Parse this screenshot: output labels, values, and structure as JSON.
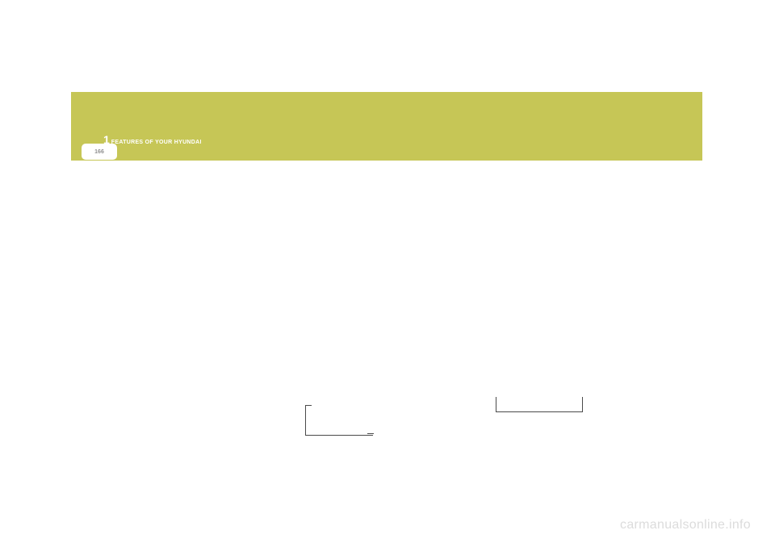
{
  "header": {
    "band_color": "#c6c656",
    "chapter_number": "1",
    "title": "FEATURES OF YOUR HYUNDAI",
    "text_color": "#ffffff"
  },
  "page_tab": {
    "number": "166",
    "bg_color": "#ffffff",
    "text_color": "#909090"
  },
  "brackets": {
    "left": {
      "color": "#4a4a4a"
    },
    "right": {
      "color": "#4a4a4a"
    }
  },
  "watermark": {
    "text": "carmanualsonline.info",
    "color": "#dcdcdc"
  },
  "page_bg": "#ffffff"
}
